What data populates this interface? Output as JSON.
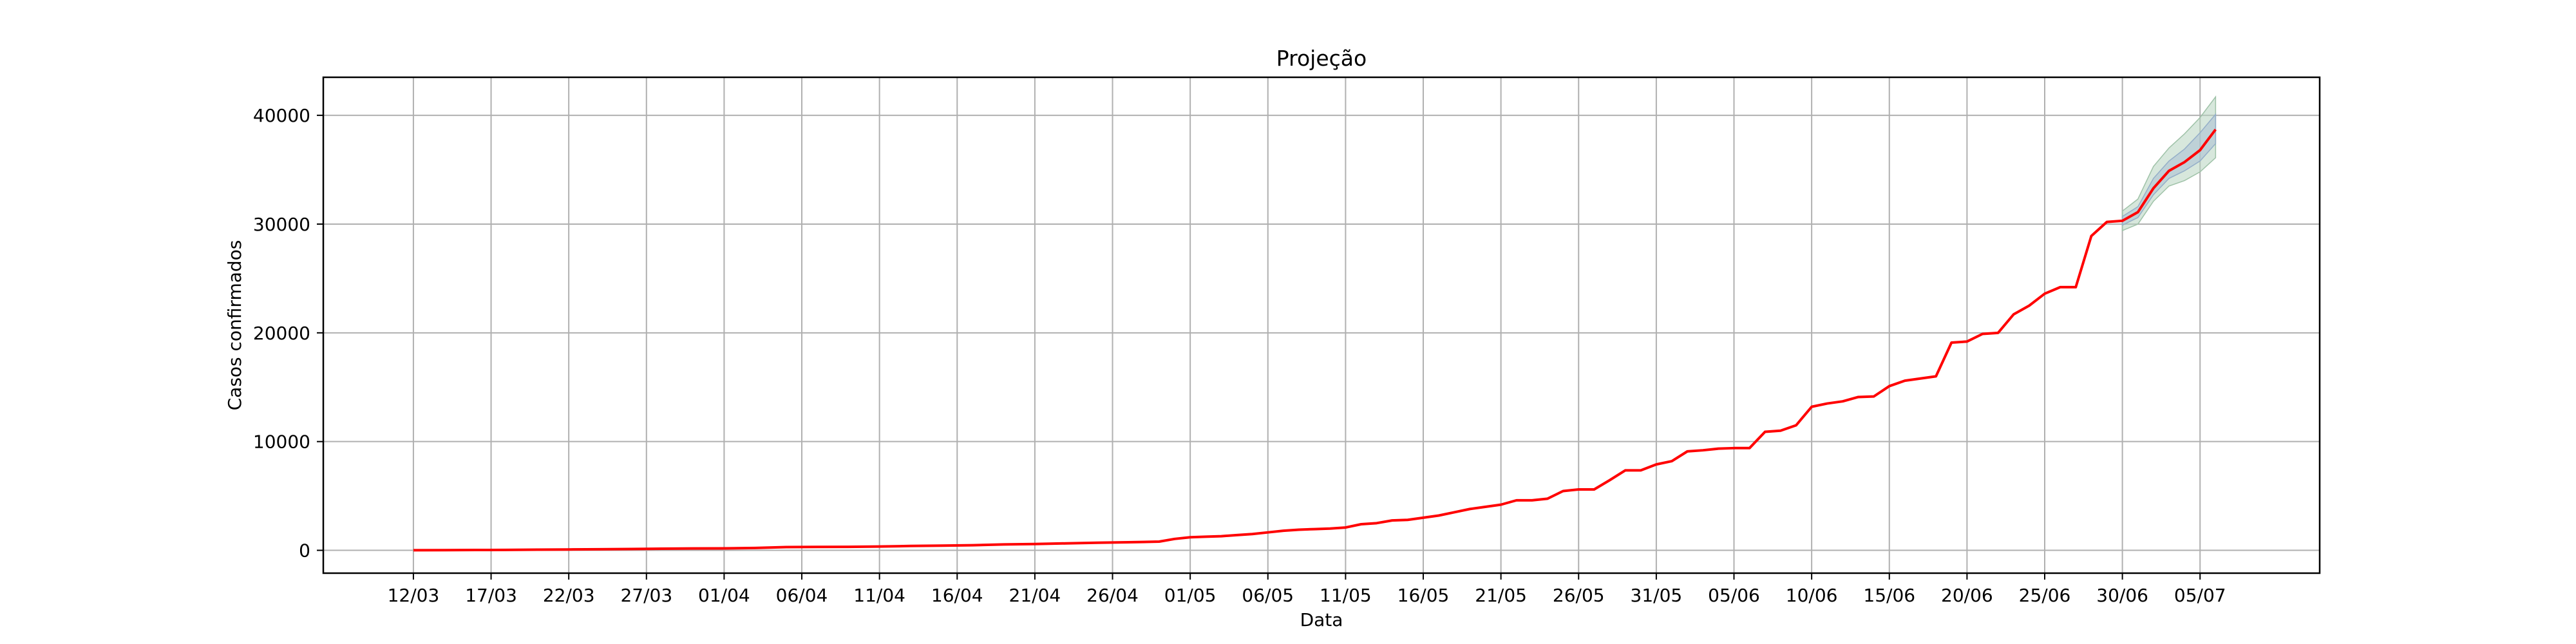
{
  "chart_data": {
    "type": "line",
    "title": "Projeção",
    "xlabel": "Data",
    "ylabel": "Casos confirmados",
    "grid": true,
    "x_tick_labels": [
      "12/03",
      "17/03",
      "22/03",
      "27/03",
      "01/04",
      "06/04",
      "11/04",
      "16/04",
      "21/04",
      "26/04",
      "01/05",
      "06/05",
      "11/05",
      "16/05",
      "21/05",
      "26/05",
      "31/05",
      "05/06",
      "10/06",
      "15/06",
      "20/06",
      "25/06",
      "30/06",
      "05/07"
    ],
    "x_tick_days": [
      0,
      5,
      10,
      15,
      20,
      25,
      30,
      35,
      40,
      45,
      50,
      55,
      60,
      65,
      70,
      75,
      80,
      85,
      90,
      95,
      100,
      105,
      110,
      115
    ],
    "y_ticks": [
      0,
      10000,
      20000,
      30000,
      40000
    ],
    "xlim": [
      -5.8,
      122.7
    ],
    "ylim": [
      -2100,
      43500
    ],
    "colors": {
      "line": "#ff0000",
      "band_outer": "#b7d3bf",
      "band_inner": "#a9bfd4",
      "grid": "#b0b0b0"
    },
    "series": [
      {
        "values": [
          [
            0,
            10
          ],
          [
            2,
            20
          ],
          [
            4,
            30
          ],
          [
            6,
            40
          ],
          [
            8,
            60
          ],
          [
            10,
            80
          ],
          [
            12,
            100
          ],
          [
            14,
            120
          ],
          [
            16,
            150
          ],
          [
            18,
            170
          ],
          [
            20,
            180
          ],
          [
            22,
            220
          ],
          [
            24,
            300
          ],
          [
            26,
            310
          ],
          [
            28,
            320
          ],
          [
            30,
            350
          ],
          [
            32,
            400
          ],
          [
            34,
            430
          ],
          [
            36,
            470
          ],
          [
            38,
            540
          ],
          [
            40,
            580
          ],
          [
            42,
            640
          ],
          [
            44,
            700
          ],
          [
            46,
            740
          ],
          [
            48,
            800
          ],
          [
            49,
            1050
          ],
          [
            50,
            1200
          ],
          [
            51,
            1250
          ],
          [
            52,
            1300
          ],
          [
            53,
            1400
          ],
          [
            54,
            1500
          ],
          [
            55,
            1650
          ],
          [
            56,
            1800
          ],
          [
            57,
            1900
          ],
          [
            58,
            1950
          ],
          [
            59,
            2000
          ],
          [
            60,
            2100
          ],
          [
            61,
            2400
          ],
          [
            62,
            2500
          ],
          [
            63,
            2750
          ],
          [
            64,
            2800
          ],
          [
            65,
            3000
          ],
          [
            66,
            3200
          ],
          [
            67,
            3500
          ],
          [
            68,
            3800
          ],
          [
            69,
            4000
          ],
          [
            70,
            4200
          ],
          [
            71,
            4600
          ],
          [
            72,
            4600
          ],
          [
            73,
            4750
          ],
          [
            74,
            5450
          ],
          [
            75,
            5600
          ],
          [
            76,
            5600
          ],
          [
            77,
            6450
          ],
          [
            78,
            7350
          ],
          [
            79,
            7350
          ],
          [
            80,
            7900
          ],
          [
            81,
            8200
          ],
          [
            82,
            9100
          ],
          [
            83,
            9200
          ],
          [
            84,
            9350
          ],
          [
            85,
            9400
          ],
          [
            86,
            9400
          ],
          [
            87,
            10900
          ],
          [
            88,
            11000
          ],
          [
            89,
            11500
          ],
          [
            90,
            13200
          ],
          [
            91,
            13500
          ],
          [
            92,
            13700
          ],
          [
            93,
            14100
          ],
          [
            94,
            14150
          ],
          [
            95,
            15100
          ],
          [
            96,
            15600
          ],
          [
            97,
            15800
          ],
          [
            98,
            16000
          ],
          [
            99,
            19100
          ],
          [
            100,
            19200
          ],
          [
            101,
            19900
          ],
          [
            102,
            20000
          ],
          [
            103,
            21700
          ],
          [
            104,
            22500
          ],
          [
            105,
            23600
          ],
          [
            106,
            24200
          ],
          [
            107,
            24200
          ],
          [
            108,
            28900
          ],
          [
            109,
            30200
          ],
          [
            110,
            30300
          ],
          [
            111,
            31100
          ],
          [
            112,
            33300
          ],
          [
            113,
            34900
          ],
          [
            114,
            35700
          ],
          [
            115,
            36800
          ],
          [
            116,
            38700
          ]
        ]
      }
    ],
    "projection_band": {
      "x": [
        110,
        111,
        112,
        113,
        114,
        115,
        116
      ],
      "lower_outer": [
        29400,
        30000,
        32100,
        33500,
        34000,
        34800,
        36100
      ],
      "lower_inner": [
        29900,
        30600,
        32700,
        34200,
        34900,
        35800,
        37400
      ],
      "upper_inner": [
        30700,
        31600,
        34200,
        35800,
        36900,
        38400,
        40100
      ],
      "upper_outer": [
        31200,
        32300,
        35300,
        37000,
        38300,
        39800,
        41700
      ]
    }
  }
}
